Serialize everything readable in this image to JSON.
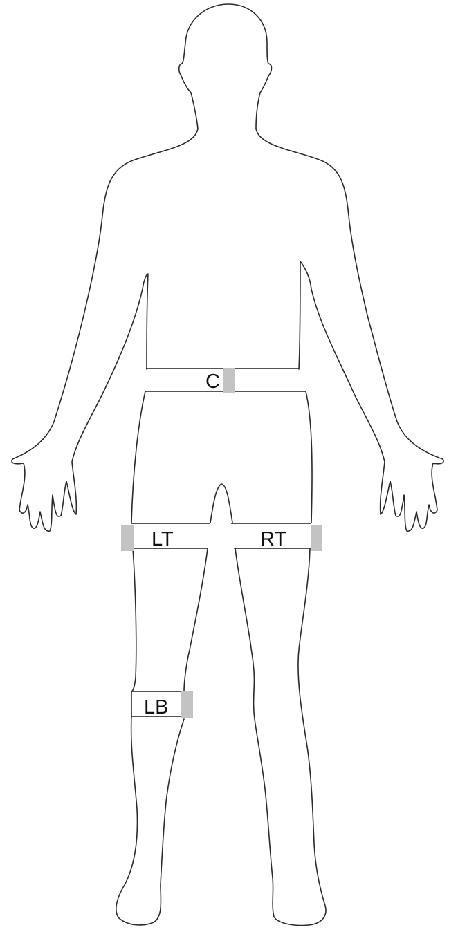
{
  "colors": {
    "outline": "#2a2a2a",
    "band_line": "#1c1c1c",
    "sensor": "#c3c3c3",
    "background": "#ffffff"
  },
  "bands": [
    {
      "id": "C",
      "label": "C"
    },
    {
      "id": "LT",
      "label": "LT"
    },
    {
      "id": "RT",
      "label": "RT"
    },
    {
      "id": "LB",
      "label": "LB"
    }
  ]
}
